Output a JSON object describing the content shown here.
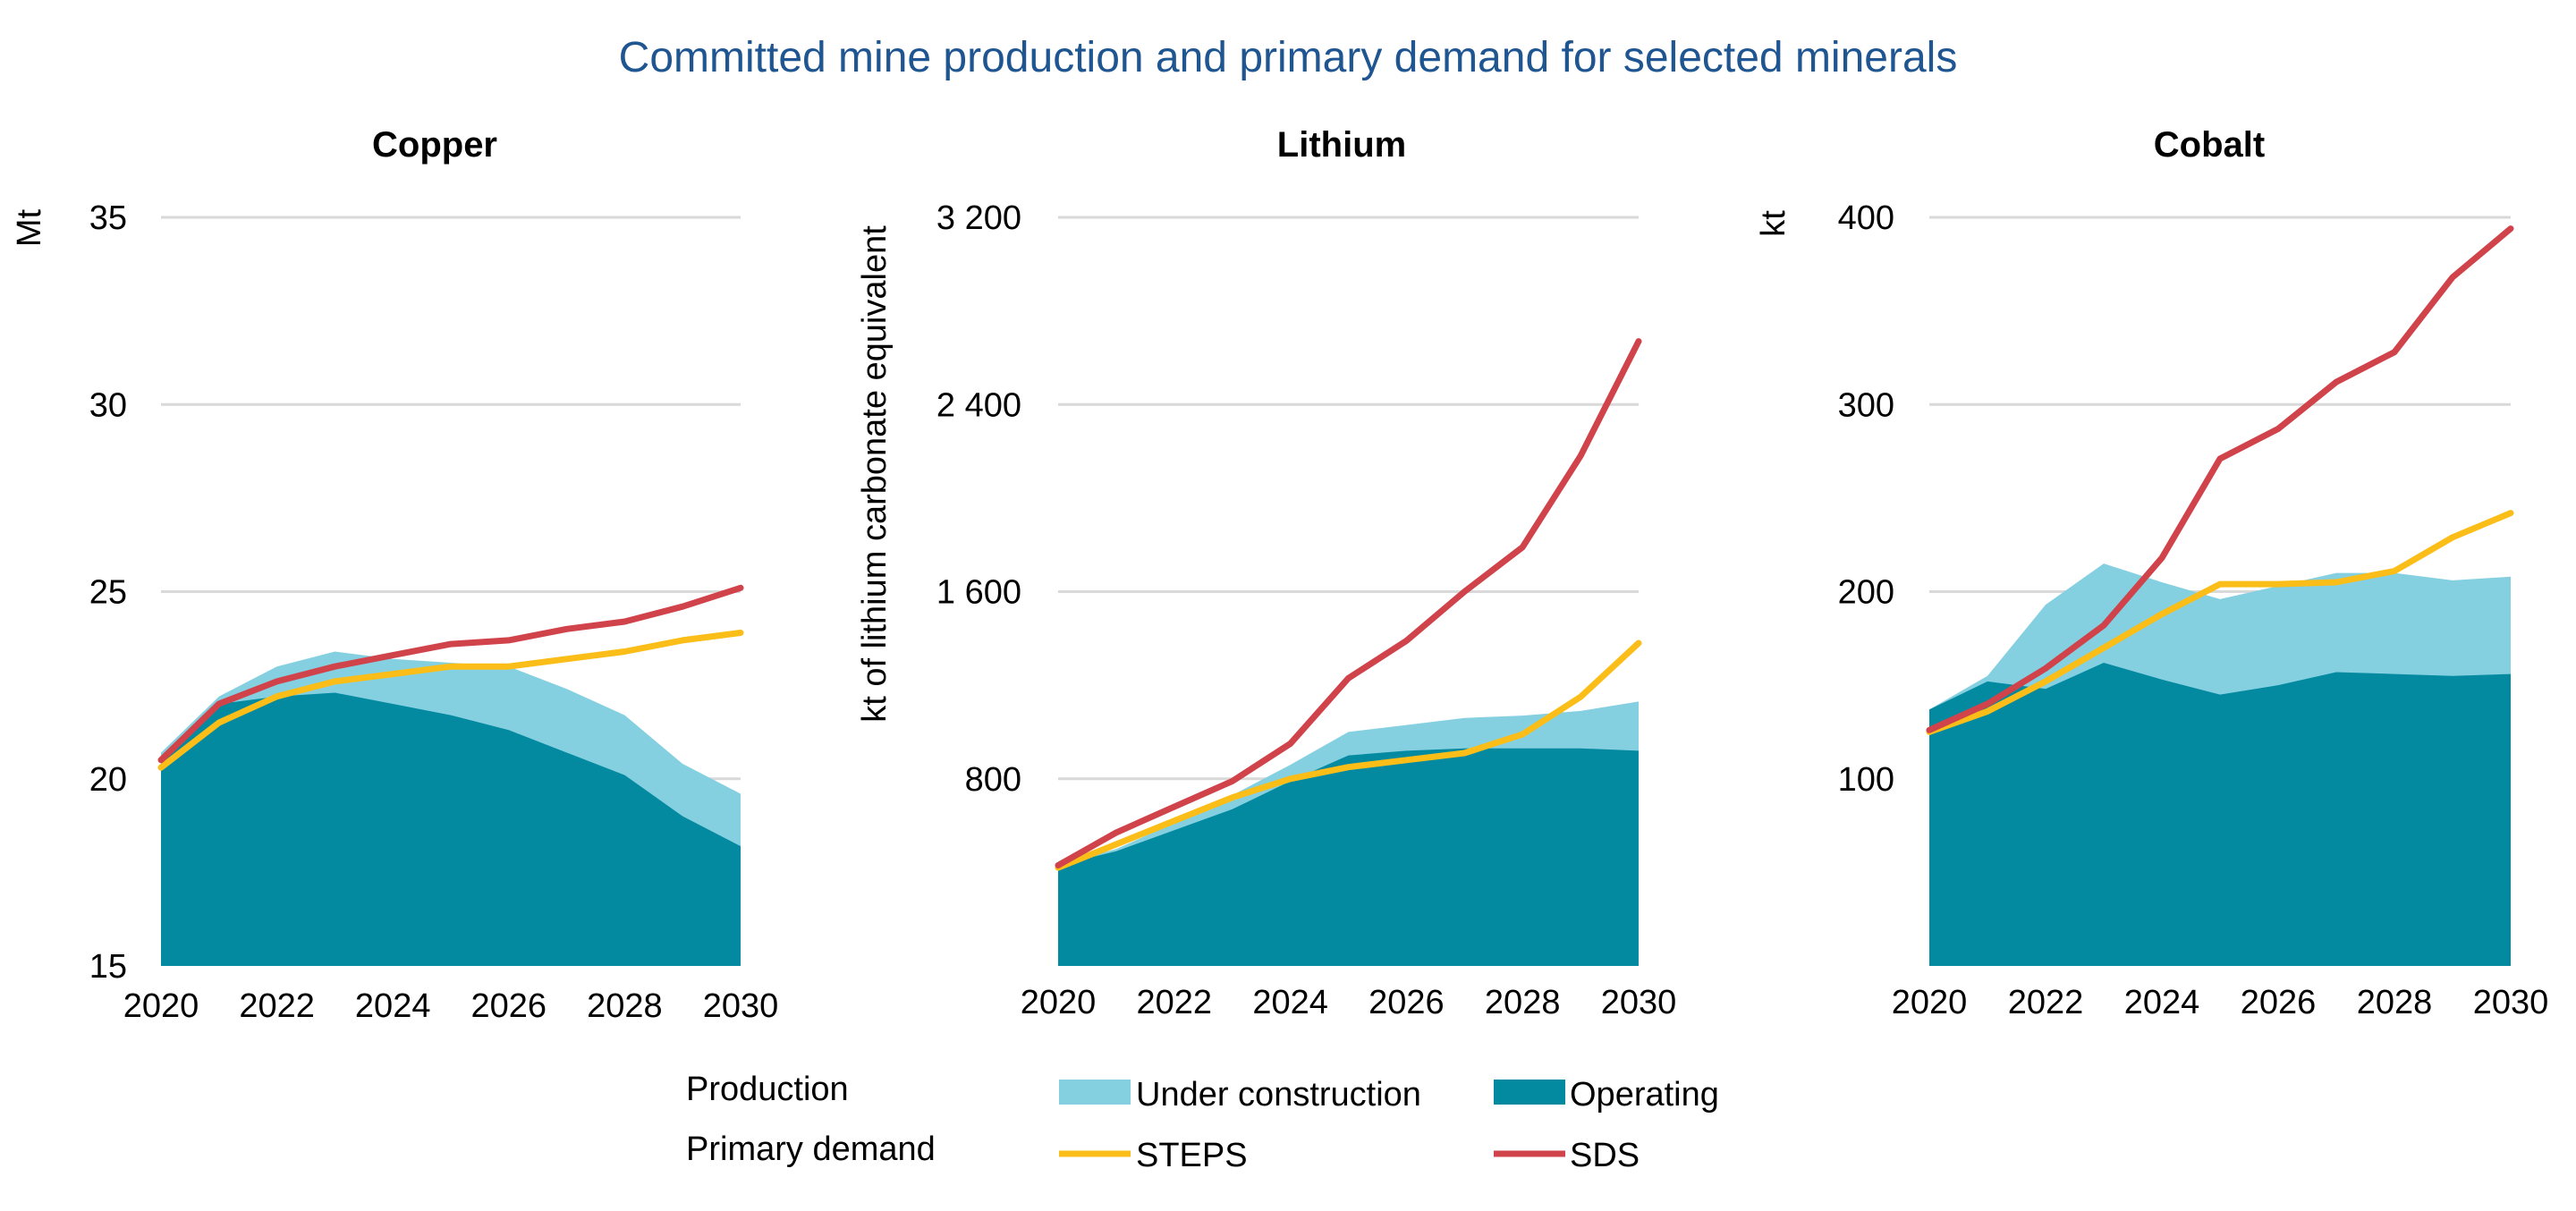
{
  "chart_data": {
    "title": "Committed mine production and primary demand for selected minerals",
    "type": "area",
    "colors": {
      "under_construction": "#84d0e1",
      "operating": "#048aa0",
      "steps": "#fbbd18",
      "sds": "#d0434b",
      "title": "#1f5590"
    },
    "legend": {
      "production_label": "Production",
      "primary_demand_label": "Primary demand",
      "under_construction": "Under construction",
      "operating": "Operating",
      "steps": "STEPS",
      "sds": "SDS"
    },
    "panels": [
      {
        "id": "copper",
        "title": "Copper",
        "ylabel": "Mt",
        "ylim": [
          15,
          35
        ],
        "yticks": [
          15,
          20,
          25,
          30,
          35
        ],
        "ytick_labels": [
          "15",
          "20",
          "25",
          "30",
          "35"
        ],
        "x": [
          2020,
          2021,
          2022,
          2023,
          2024,
          2025,
          2026,
          2027,
          2028,
          2029,
          2030
        ],
        "xticks": [
          2020,
          2022,
          2024,
          2026,
          2028,
          2030
        ],
        "series": [
          {
            "name": "Operating",
            "kind": "area",
            "values": [
              20.6,
              22.0,
              22.2,
              22.3,
              22.0,
              21.7,
              21.3,
              20.7,
              20.1,
              19.0,
              18.2
            ]
          },
          {
            "name": "Under construction",
            "kind": "area",
            "values": [
              20.7,
              22.2,
              23.0,
              23.4,
              23.2,
              23.1,
              23.0,
              22.4,
              21.7,
              20.4,
              19.6
            ]
          },
          {
            "name": "STEPS",
            "kind": "line",
            "values": [
              20.3,
              21.5,
              22.2,
              22.6,
              22.8,
              23.0,
              23.0,
              23.2,
              23.4,
              23.7,
              23.9
            ]
          },
          {
            "name": "SDS",
            "kind": "line",
            "values": [
              20.5,
              22.0,
              22.6,
              23.0,
              23.3,
              23.6,
              23.7,
              24.0,
              24.2,
              24.6,
              25.1
            ]
          }
        ]
      },
      {
        "id": "lithium",
        "title": "Lithium",
        "ylabel": "kt of lithium carbonate equivalent",
        "ylim": [
          0,
          3200
        ],
        "yticks": [
          800,
          1600,
          2400,
          3200
        ],
        "ytick_labels": [
          "800",
          "1 600",
          "2 400",
          "3 200"
        ],
        "x": [
          2020,
          2021,
          2022,
          2023,
          2024,
          2025,
          2026,
          2027,
          2028,
          2029,
          2030
        ],
        "xticks": [
          2020,
          2022,
          2024,
          2026,
          2028,
          2030
        ],
        "series": [
          {
            "name": "Operating",
            "kind": "area",
            "values": [
              430,
              490,
              580,
              670,
              790,
              900,
              920,
              930,
              930,
              930,
              920
            ]
          },
          {
            "name": "Under construction",
            "kind": "area",
            "values": [
              430,
              500,
              610,
              730,
              860,
              1000,
              1030,
              1060,
              1070,
              1090,
              1130
            ]
          },
          {
            "name": "STEPS",
            "kind": "line",
            "values": [
              420,
              520,
              620,
              720,
              800,
              850,
              880,
              910,
              990,
              1150,
              1380
            ]
          },
          {
            "name": "SDS",
            "kind": "line",
            "values": [
              430,
              570,
              680,
              790,
              950,
              1230,
              1390,
              1600,
              1790,
              2180,
              2670
            ]
          }
        ]
      },
      {
        "id": "cobalt",
        "title": "Cobalt",
        "ylabel": "kt",
        "ylim": [
          0,
          400
        ],
        "yticks": [
          100,
          200,
          300,
          400
        ],
        "ytick_labels": [
          "100",
          "200",
          "300",
          "400"
        ],
        "x": [
          2020,
          2021,
          2022,
          2023,
          2024,
          2025,
          2026,
          2027,
          2028,
          2029,
          2030
        ],
        "xticks": [
          2020,
          2022,
          2024,
          2026,
          2028,
          2030
        ],
        "series": [
          {
            "name": "Operating",
            "kind": "area",
            "values": [
              137,
              152,
              148,
              162,
              153,
              145,
              150,
              157,
              156,
              155,
              156
            ]
          },
          {
            "name": "Under construction",
            "kind": "area",
            "values": [
              137,
              155,
              193,
              215,
              205,
              196,
              203,
              210,
              210,
              206,
              208
            ]
          },
          {
            "name": "STEPS",
            "kind": "line",
            "values": [
              125,
              136,
              152,
              170,
              188,
              204,
              204,
              205,
              211,
              229,
              242
            ]
          },
          {
            "name": "SDS",
            "kind": "line",
            "values": [
              126,
              140,
              159,
              182,
              218,
              271,
              287,
              312,
              328,
              368,
              394
            ]
          }
        ]
      }
    ]
  }
}
